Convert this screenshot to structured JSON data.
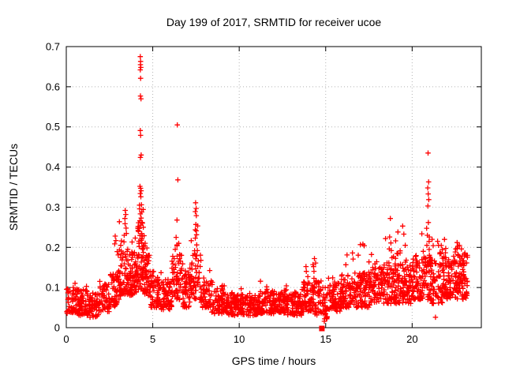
{
  "window": {
    "background": "#ffffff"
  },
  "colors": {
    "marker": "#ff0000",
    "grid": "#b3b3b3",
    "axis": "#000000",
    "text": "#000000",
    "background": "#ffffff"
  },
  "chart_data": {
    "type": "scatter",
    "title": "Day 199 of 2017, SRMTID for receiver ucoe",
    "xlabel": "GPS time / hours",
    "ylabel": "SRMTID / TECUs",
    "xlim": [
      0,
      24
    ],
    "ylim": [
      0,
      0.7
    ],
    "xticks": [
      0,
      5,
      10,
      15,
      20
    ],
    "yticks": [
      0,
      0.1,
      0.2,
      0.3,
      0.4,
      0.5,
      0.6,
      0.7
    ],
    "grid": true,
    "legend": "none",
    "marker": "plus",
    "marker_color": "#ff0000",
    "data_x_extent": [
      0.02,
      23.2
    ],
    "peak_points": [
      [
        4.28,
        0.675
      ],
      [
        4.3,
        0.663
      ],
      [
        4.29,
        0.655
      ],
      [
        4.31,
        0.648
      ],
      [
        4.28,
        0.642
      ],
      [
        4.3,
        0.621
      ],
      [
        4.29,
        0.577
      ],
      [
        4.32,
        0.57
      ],
      [
        4.28,
        0.491
      ],
      [
        4.3,
        0.479
      ],
      [
        4.33,
        0.43
      ],
      [
        4.29,
        0.424
      ],
      [
        4.26,
        0.352
      ],
      [
        4.3,
        0.347
      ],
      [
        4.33,
        0.341
      ],
      [
        4.28,
        0.334
      ],
      [
        4.31,
        0.326
      ],
      [
        4.35,
        0.306
      ],
      [
        4.24,
        0.296
      ],
      [
        4.37,
        0.262
      ],
      [
        4.22,
        0.247
      ],
      [
        4.4,
        0.228
      ],
      [
        4.2,
        0.21
      ],
      [
        4.42,
        0.195
      ],
      [
        4.18,
        0.182
      ],
      [
        3.41,
        0.292
      ],
      [
        3.44,
        0.282
      ],
      [
        3.39,
        0.272
      ],
      [
        3.46,
        0.248
      ],
      [
        3.35,
        0.23
      ],
      [
        2.83,
        0.228
      ],
      [
        2.87,
        0.217
      ],
      [
        3.15,
        0.205
      ],
      [
        3.52,
        0.19
      ],
      [
        6.42,
        0.505
      ],
      [
        6.45,
        0.368
      ],
      [
        6.4,
        0.268
      ],
      [
        6.35,
        0.225
      ],
      [
        6.5,
        0.21
      ],
      [
        6.3,
        0.195
      ],
      [
        6.55,
        0.182
      ],
      [
        7.48,
        0.311
      ],
      [
        7.51,
        0.297
      ],
      [
        7.46,
        0.289
      ],
      [
        7.52,
        0.279
      ],
      [
        7.49,
        0.257
      ],
      [
        7.52,
        0.241
      ],
      [
        7.46,
        0.223
      ],
      [
        7.54,
        0.206
      ],
      [
        7.58,
        0.192
      ],
      [
        7.42,
        0.185
      ],
      [
        14.35,
        0.172
      ],
      [
        14.42,
        0.161
      ],
      [
        14.3,
        0.152
      ],
      [
        16.55,
        0.186
      ],
      [
        17.15,
        0.208
      ],
      [
        18.74,
        0.272
      ],
      [
        18.7,
        0.226
      ],
      [
        18.77,
        0.211
      ],
      [
        18.68,
        0.196
      ],
      [
        19.45,
        0.253
      ],
      [
        19.52,
        0.233
      ],
      [
        19.6,
        0.205
      ],
      [
        20.92,
        0.435
      ],
      [
        20.95,
        0.363
      ],
      [
        20.9,
        0.348
      ],
      [
        20.93,
        0.333
      ],
      [
        20.96,
        0.319
      ],
      [
        20.91,
        0.303
      ],
      [
        20.94,
        0.262
      ],
      [
        20.88,
        0.23
      ],
      [
        20.98,
        0.215
      ],
      [
        20.85,
        0.205
      ],
      [
        22.6,
        0.212
      ],
      [
        22.85,
        0.196
      ],
      [
        23.05,
        0.186
      ],
      [
        22.4,
        0.178
      ],
      [
        21.35,
        0.026
      ],
      [
        14.92,
        0.016
      ],
      [
        14.85,
        0.035
      ],
      [
        15.0,
        0.045
      ]
    ],
    "zero_squares": [
      [
        14.78,
        0.0
      ]
    ],
    "baseline_cloud": {
      "seed": 1719,
      "comment": "dense + marker cloud; segments = [x0, x1, n, coreLo, coreHi, tailHi, tailProb]",
      "segments": [
        [
          0.02,
          0.7,
          60,
          0.035,
          0.1,
          0.115,
          0.05
        ],
        [
          0.7,
          1.3,
          55,
          0.03,
          0.095,
          0.11,
          0.05
        ],
        [
          1.3,
          1.9,
          50,
          0.025,
          0.085,
          0.1,
          0.04
        ],
        [
          1.9,
          2.5,
          55,
          0.04,
          0.11,
          0.13,
          0.06
        ],
        [
          2.5,
          3.0,
          50,
          0.05,
          0.13,
          0.23,
          0.08
        ],
        [
          3.0,
          3.45,
          55,
          0.07,
          0.19,
          0.3,
          0.12
        ],
        [
          3.45,
          3.8,
          45,
          0.08,
          0.17,
          0.25,
          0.08
        ],
        [
          3.8,
          4.15,
          45,
          0.08,
          0.18,
          0.28,
          0.08
        ],
        [
          4.15,
          4.5,
          60,
          0.09,
          0.26,
          0.36,
          0.2
        ],
        [
          4.5,
          4.85,
          45,
          0.08,
          0.18,
          0.24,
          0.08
        ],
        [
          4.85,
          5.4,
          55,
          0.05,
          0.13,
          0.16,
          0.05
        ],
        [
          5.4,
          6.1,
          70,
          0.045,
          0.12,
          0.14,
          0.05
        ],
        [
          6.1,
          6.7,
          60,
          0.07,
          0.18,
          0.23,
          0.1
        ],
        [
          6.7,
          7.2,
          50,
          0.05,
          0.13,
          0.16,
          0.06
        ],
        [
          7.2,
          7.8,
          60,
          0.07,
          0.18,
          0.27,
          0.12
        ],
        [
          7.8,
          8.4,
          55,
          0.05,
          0.12,
          0.15,
          0.05
        ],
        [
          8.4,
          9.2,
          70,
          0.035,
          0.1,
          0.12,
          0.04
        ],
        [
          9.2,
          10.2,
          95,
          0.03,
          0.085,
          0.1,
          0.03
        ],
        [
          10.2,
          11.2,
          95,
          0.03,
          0.08,
          0.1,
          0.03
        ],
        [
          11.2,
          12.1,
          85,
          0.035,
          0.09,
          0.13,
          0.05
        ],
        [
          12.1,
          12.8,
          70,
          0.035,
          0.095,
          0.13,
          0.05
        ],
        [
          12.8,
          13.6,
          75,
          0.03,
          0.085,
          0.11,
          0.04
        ],
        [
          13.6,
          14.3,
          70,
          0.04,
          0.11,
          0.17,
          0.08
        ],
        [
          14.3,
          14.75,
          40,
          0.03,
          0.12,
          0.15,
          0.05
        ],
        [
          14.75,
          15.1,
          30,
          0.02,
          0.1,
          0.12,
          0.04
        ],
        [
          15.1,
          15.9,
          75,
          0.04,
          0.11,
          0.13,
          0.05
        ],
        [
          15.9,
          16.8,
          90,
          0.05,
          0.13,
          0.19,
          0.08
        ],
        [
          16.8,
          17.6,
          85,
          0.05,
          0.14,
          0.21,
          0.08
        ],
        [
          17.6,
          18.4,
          85,
          0.06,
          0.15,
          0.23,
          0.08
        ],
        [
          18.4,
          19.2,
          85,
          0.06,
          0.16,
          0.25,
          0.1
        ],
        [
          19.2,
          20.0,
          85,
          0.06,
          0.16,
          0.26,
          0.1
        ],
        [
          20.0,
          20.6,
          70,
          0.07,
          0.17,
          0.26,
          0.1
        ],
        [
          20.6,
          21.1,
          60,
          0.07,
          0.19,
          0.3,
          0.12
        ],
        [
          21.1,
          21.8,
          70,
          0.06,
          0.16,
          0.22,
          0.08
        ],
        [
          21.8,
          22.4,
          70,
          0.07,
          0.17,
          0.22,
          0.1
        ],
        [
          22.4,
          23.2,
          100,
          0.07,
          0.18,
          0.21,
          0.15
        ]
      ]
    }
  }
}
